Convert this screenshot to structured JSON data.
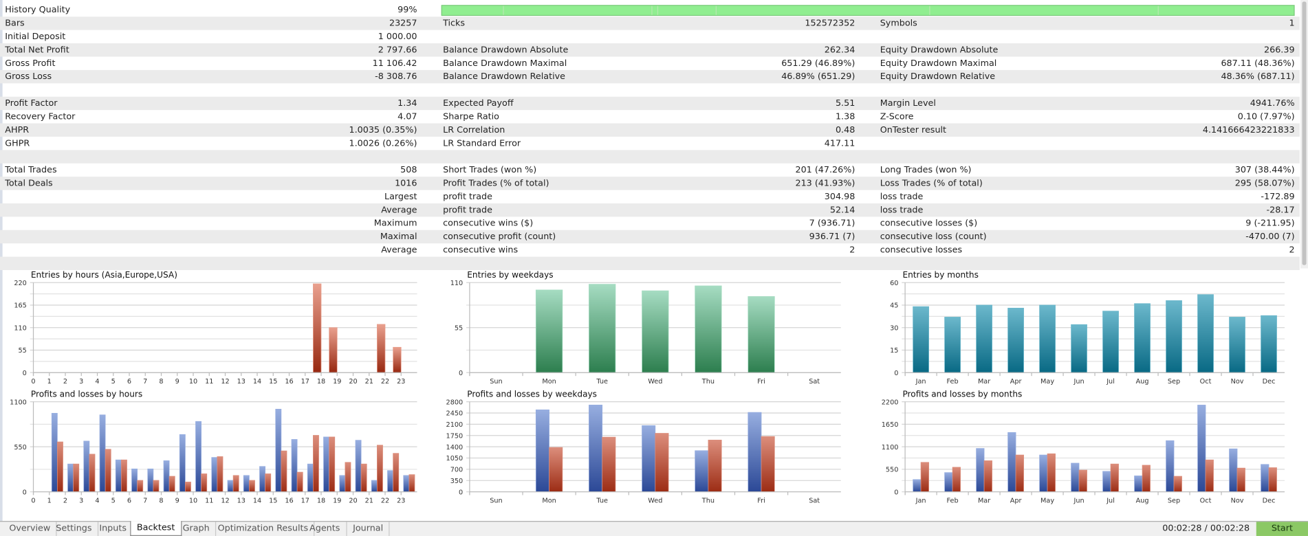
{
  "history_quality": {
    "label": "History Quality",
    "value": "99%",
    "fill_percent": 99
  },
  "rows": [
    [
      [
        "Bars",
        "23257"
      ],
      [
        "Ticks",
        "152572352"
      ],
      [
        "Symbols",
        "1"
      ]
    ],
    [
      [
        "Initial Deposit",
        "1 000.00"
      ],
      [
        "",
        ""
      ],
      [
        "",
        ""
      ]
    ],
    [
      [
        "Total Net Profit",
        "2 797.66"
      ],
      [
        "Balance Drawdown Absolute",
        "262.34"
      ],
      [
        "Equity Drawdown Absolute",
        "266.39"
      ]
    ],
    [
      [
        "Gross Profit",
        "11 106.42"
      ],
      [
        "Balance Drawdown Maximal",
        "651.29 (46.89%)"
      ],
      [
        "Equity Drawdown Maximal",
        "687.11 (48.36%)"
      ]
    ],
    [
      [
        "Gross Loss",
        "-8 308.76"
      ],
      [
        "Balance Drawdown Relative",
        "46.89% (651.29)"
      ],
      [
        "Equity Drawdown Relative",
        "48.36% (687.11)"
      ]
    ],
    [
      [
        "",
        ""
      ],
      [
        "",
        ""
      ],
      [
        "",
        ""
      ]
    ],
    [
      [
        "Profit Factor",
        "1.34"
      ],
      [
        "Expected Payoff",
        "5.51"
      ],
      [
        "Margin Level",
        "4941.76%"
      ]
    ],
    [
      [
        "Recovery Factor",
        "4.07"
      ],
      [
        "Sharpe Ratio",
        "1.38"
      ],
      [
        "Z-Score",
        "0.10 (7.97%)"
      ]
    ],
    [
      [
        "AHPR",
        "1.0035 (0.35%)"
      ],
      [
        "LR Correlation",
        "0.48"
      ],
      [
        "OnTester result",
        "4.141666423221833"
      ]
    ],
    [
      [
        "GHPR",
        "1.0026 (0.26%)"
      ],
      [
        "LR Standard Error",
        "417.11"
      ],
      [
        "",
        ""
      ]
    ],
    [
      [
        "",
        ""
      ],
      [
        "",
        ""
      ],
      [
        "",
        ""
      ]
    ],
    [
      [
        "Total Trades",
        "508"
      ],
      [
        "Short Trades (won %)",
        "201 (47.26%)"
      ],
      [
        "Long Trades (won %)",
        "307 (38.44%)"
      ]
    ],
    [
      [
        "Total Deals",
        "1016"
      ],
      [
        "Profit Trades (% of total)",
        "213 (41.93%)"
      ],
      [
        "Loss Trades (% of total)",
        "295 (58.07%)"
      ]
    ],
    [
      [
        "",
        "Largest"
      ],
      [
        "profit trade",
        "304.98"
      ],
      [
        "loss trade",
        "-172.89"
      ]
    ],
    [
      [
        "",
        "Average"
      ],
      [
        "profit trade",
        "52.14"
      ],
      [
        "loss trade",
        "-28.17"
      ]
    ],
    [
      [
        "",
        "Maximum"
      ],
      [
        "consecutive wins ($)",
        "7 (936.71)"
      ],
      [
        "consecutive losses ($)",
        "9 (-211.95)"
      ]
    ],
    [
      [
        "",
        "Maximal"
      ],
      [
        "consecutive profit (count)",
        "936.71 (7)"
      ],
      [
        "consecutive loss (count)",
        "-470.00 (7)"
      ]
    ],
    [
      [
        "",
        "Average"
      ],
      [
        "consecutive wins",
        "2"
      ],
      [
        "consecutive losses",
        "2"
      ]
    ],
    [
      [
        "",
        ""
      ],
      [
        "",
        ""
      ],
      [
        "",
        ""
      ]
    ]
  ],
  "chart_data": [
    {
      "type": "bar",
      "title": "Entries by hours (Asia,Europe,USA)",
      "categories": [
        "0",
        "1",
        "2",
        "3",
        "4",
        "5",
        "6",
        "7",
        "8",
        "9",
        "10",
        "11",
        "12",
        "13",
        "14",
        "15",
        "16",
        "17",
        "18",
        "19",
        "20",
        "21",
        "22",
        "23"
      ],
      "yticks": [
        0,
        55,
        110,
        165,
        220
      ],
      "ylim": [
        0,
        220
      ],
      "series": [
        {
          "name": "entries",
          "color": [
            "#e9a08e",
            "#972810"
          ],
          "values": [
            0,
            0,
            0,
            0,
            0,
            0,
            0,
            0,
            0,
            0,
            0,
            0,
            0,
            0,
            0,
            0,
            0,
            217,
            110,
            0,
            0,
            118,
            62,
            0
          ]
        }
      ]
    },
    {
      "type": "bar",
      "title": "Entries by weekdays",
      "categories": [
        "Sun",
        "Mon",
        "Tue",
        "Wed",
        "Thu",
        "Fri",
        "Sat"
      ],
      "yticks": [
        0,
        55,
        110
      ],
      "ylim": [
        0,
        110
      ],
      "series": [
        {
          "name": "entries",
          "color": [
            "#a6dcc2",
            "#2c7e4e"
          ],
          "values": [
            0,
            101,
            108,
            100,
            106,
            93,
            0
          ]
        }
      ]
    },
    {
      "type": "bar",
      "title": "Entries by months",
      "categories": [
        "Jan",
        "Feb",
        "Mar",
        "Apr",
        "May",
        "Jun",
        "Jul",
        "Aug",
        "Sep",
        "Oct",
        "Nov",
        "Dec"
      ],
      "yticks": [
        0,
        15,
        30,
        45,
        60
      ],
      "ylim": [
        0,
        60
      ],
      "series": [
        {
          "name": "entries",
          "color": [
            "#6cb8cc",
            "#086984"
          ],
          "values": [
            44,
            37,
            45,
            43,
            45,
            32,
            41,
            46,
            48,
            52,
            37,
            38
          ]
        }
      ]
    },
    {
      "type": "bar",
      "title": "Profits and losses by hours",
      "categories": [
        "0",
        "1",
        "2",
        "3",
        "4",
        "5",
        "6",
        "7",
        "8",
        "9",
        "10",
        "11",
        "12",
        "13",
        "14",
        "15",
        "16",
        "17",
        "18",
        "19",
        "20",
        "21",
        "22",
        "23"
      ],
      "yticks": [
        0,
        550,
        1100
      ],
      "ylim": [
        0,
        1100
      ],
      "series": [
        {
          "name": "profits",
          "color": [
            "#97aee0",
            "#2b4896"
          ],
          "values": [
            0,
            960,
            340,
            620,
            940,
            390,
            280,
            280,
            380,
            700,
            860,
            420,
            140,
            200,
            310,
            1010,
            640,
            340,
            670,
            200,
            630,
            140,
            260,
            200
          ]
        },
        {
          "name": "losses",
          "color": [
            "#dc8e7c",
            "#9c2c14"
          ],
          "values": [
            0,
            610,
            340,
            460,
            520,
            390,
            140,
            140,
            190,
            120,
            220,
            430,
            200,
            140,
            220,
            500,
            240,
            690,
            670,
            360,
            340,
            570,
            470,
            210
          ]
        }
      ]
    },
    {
      "type": "bar",
      "title": "Profits and losses by weekdays",
      "categories": [
        "Sun",
        "Mon",
        "Tue",
        "Wed",
        "Thu",
        "Fri",
        "Sat"
      ],
      "yticks": [
        0,
        350,
        700,
        1050,
        1400,
        1750,
        2100,
        2450,
        2800
      ],
      "ylim": [
        0,
        2800
      ],
      "series": [
        {
          "name": "profits",
          "color": [
            "#97aee0",
            "#2b4896"
          ],
          "values": [
            0,
            2550,
            2700,
            2060,
            1280,
            2470,
            0
          ]
        },
        {
          "name": "losses",
          "color": [
            "#dc8e7c",
            "#9c2c14"
          ],
          "values": [
            0,
            1380,
            1700,
            1820,
            1610,
            1720,
            0
          ]
        }
      ]
    },
    {
      "type": "bar",
      "title": "Profits and losses by months",
      "categories": [
        "Jan",
        "Feb",
        "Mar",
        "Apr",
        "May",
        "Jun",
        "Jul",
        "Aug",
        "Sep",
        "Oct",
        "Nov",
        "Dec"
      ],
      "yticks": [
        0,
        550,
        1100,
        1650,
        2200
      ],
      "ylim": [
        0,
        2200
      ],
      "series": [
        {
          "name": "profits",
          "color": [
            "#97aee0",
            "#2b4896"
          ],
          "values": [
            300,
            470,
            1060,
            1450,
            900,
            700,
            500,
            390,
            1250,
            2120,
            1050,
            670
          ]
        },
        {
          "name": "losses",
          "color": [
            "#dc8e7c",
            "#9c2c14"
          ],
          "values": [
            720,
            600,
            760,
            900,
            930,
            530,
            680,
            650,
            380,
            780,
            580,
            590
          ]
        }
      ]
    }
  ],
  "tabs": [
    "Overview",
    "Settings",
    "Inputs",
    "Backtest",
    "Graph",
    "Optimization Results",
    "Agents",
    "Journal"
  ],
  "active_tab": "Backtest",
  "timer": "00:02:28 / 00:02:28",
  "start_label": "Start"
}
